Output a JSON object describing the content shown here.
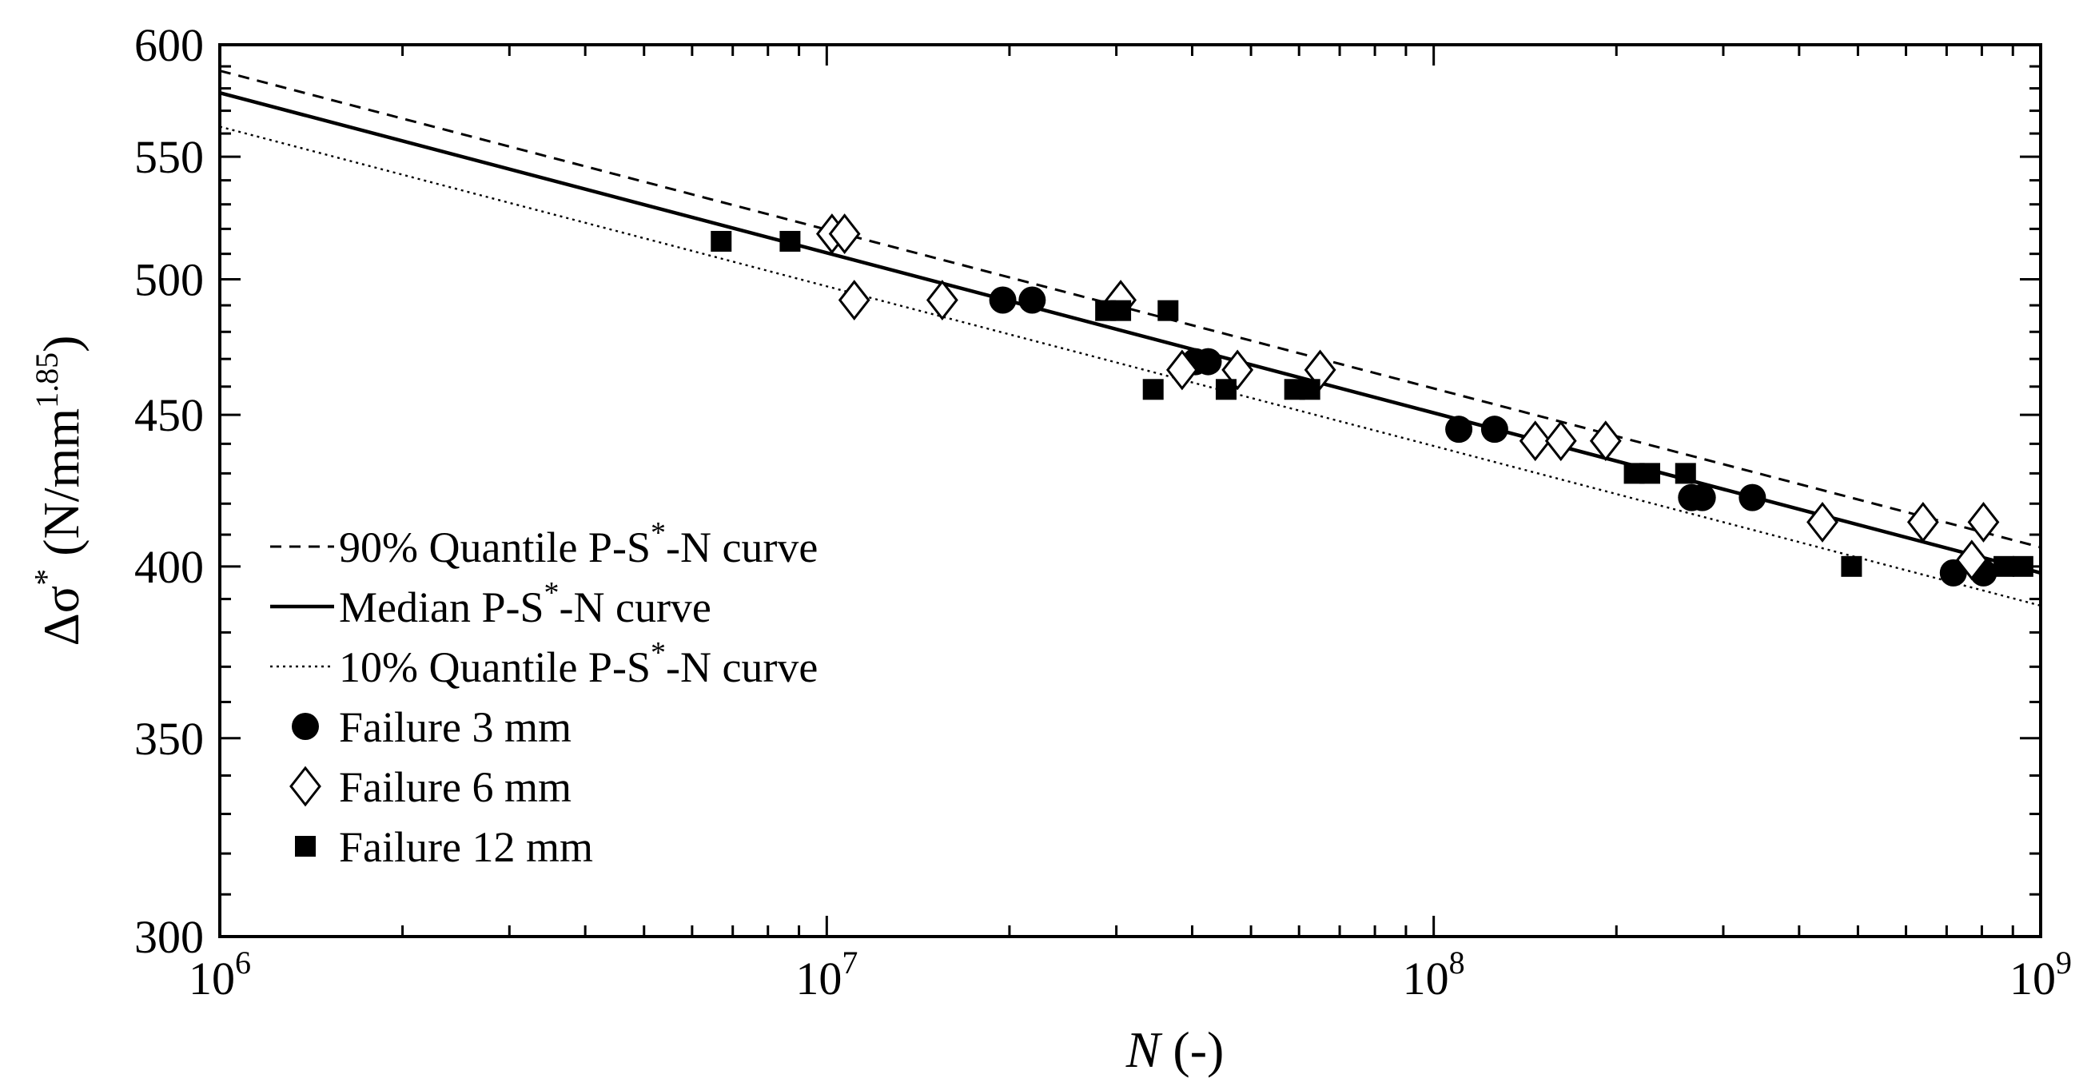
{
  "chart_data": {
    "type": "scatter",
    "title": "",
    "xscale": "log",
    "yscale": "log",
    "xlim": [
      1000000,
      1000000000
    ],
    "ylim": [
      300,
      600
    ],
    "xlabel": {
      "main": "N",
      "unit": " (-)"
    },
    "ylabel": {
      "main": "Δσ",
      "sup": "*",
      "unit_open": " (N/mm",
      "unit_sup": "1.85",
      "unit_close": ")"
    },
    "x_ticks": [
      {
        "value": 1000000,
        "base": "10",
        "exp": "6"
      },
      {
        "value": 10000000,
        "base": "10",
        "exp": "7"
      },
      {
        "value": 100000000,
        "base": "10",
        "exp": "8"
      },
      {
        "value": 1000000000,
        "base": "10",
        "exp": "9"
      }
    ],
    "y_ticks": [
      {
        "value": 300,
        "label": "300"
      },
      {
        "value": 350,
        "label": "350"
      },
      {
        "value": 400,
        "label": "400"
      },
      {
        "value": 450,
        "label": "450"
      },
      {
        "value": 500,
        "label": "500"
      },
      {
        "value": 550,
        "label": "550"
      },
      {
        "value": 600,
        "label": "600"
      }
    ],
    "y_minor_ticks": [
      310,
      320,
      330,
      340,
      360,
      370,
      380,
      390,
      410,
      420,
      430,
      440,
      460,
      470,
      480,
      490,
      510,
      520,
      530,
      540,
      560,
      570,
      580,
      590
    ],
    "lines": [
      {
        "name": "90% Quantile P-S*-N curve",
        "style": "dashed",
        "points": [
          [
            1000000,
            588
          ],
          [
            1000000000,
            406
          ]
        ]
      },
      {
        "name": "Median P-S*-N curve",
        "style": "solid",
        "points": [
          [
            1000000,
            578
          ],
          [
            1000000000,
            398
          ]
        ]
      },
      {
        "name": "10% Quantile P-S*-N curve",
        "style": "dotted",
        "points": [
          [
            1000000,
            563
          ],
          [
            1000000000,
            388
          ]
        ]
      }
    ],
    "series": [
      {
        "name": "Failure 3 mm",
        "marker": "circle",
        "points": [
          [
            19500000,
            492
          ],
          [
            21800000,
            492
          ],
          [
            40500000,
            469
          ],
          [
            42500000,
            469
          ],
          [
            110000000,
            445
          ],
          [
            126000000,
            445
          ],
          [
            266000000,
            422
          ],
          [
            277000000,
            422
          ],
          [
            335000000,
            422
          ],
          [
            718000000,
            398
          ],
          [
            805000000,
            398
          ]
        ]
      },
      {
        "name": "Failure 6 mm",
        "marker": "diamond",
        "points": [
          [
            10200000,
            518
          ],
          [
            10700000,
            518
          ],
          [
            11100000,
            492
          ],
          [
            15500000,
            492
          ],
          [
            30500000,
            492
          ],
          [
            38500000,
            466
          ],
          [
            47500000,
            466
          ],
          [
            65000000,
            466
          ],
          [
            147000000,
            441
          ],
          [
            162000000,
            441
          ],
          [
            192000000,
            441
          ],
          [
            437000000,
            414
          ],
          [
            640000000,
            414
          ],
          [
            770000000,
            402
          ],
          [
            805000000,
            414
          ]
        ]
      },
      {
        "name": "Failure 12 mm",
        "marker": "square",
        "points": [
          [
            6700000,
            515
          ],
          [
            8700000,
            515
          ],
          [
            28800000,
            488
          ],
          [
            30500000,
            488
          ],
          [
            36500000,
            488
          ],
          [
            34500000,
            459
          ],
          [
            45500000,
            459
          ],
          [
            59000000,
            459
          ],
          [
            62500000,
            459
          ],
          [
            214000000,
            430
          ],
          [
            227000000,
            430
          ],
          [
            260000000,
            430
          ],
          [
            488000000,
            400
          ],
          [
            870000000,
            400
          ],
          [
            935000000,
            400
          ]
        ]
      }
    ],
    "legend": {
      "position": "bottom-left",
      "entries": [
        {
          "label": "90% Quantile P-S",
          "sup": "*",
          "tail": "-N curve",
          "kind": "line",
          "style": "dashed"
        },
        {
          "label": "Median P-S",
          "sup": "*",
          "tail": "-N curve",
          "kind": "line",
          "style": "solid"
        },
        {
          "label": "10% Quantile P-S",
          "sup": "*",
          "tail": "-N curve",
          "kind": "line",
          "style": "dotted"
        },
        {
          "label": "Failure 3 mm",
          "sup": "",
          "tail": "",
          "kind": "marker",
          "marker": "circle"
        },
        {
          "label": "Failure 6 mm",
          "sup": "",
          "tail": "",
          "kind": "marker",
          "marker": "diamond"
        },
        {
          "label": "Failure 12 mm",
          "sup": "",
          "tail": "",
          "kind": "marker",
          "marker": "square"
        }
      ]
    }
  }
}
